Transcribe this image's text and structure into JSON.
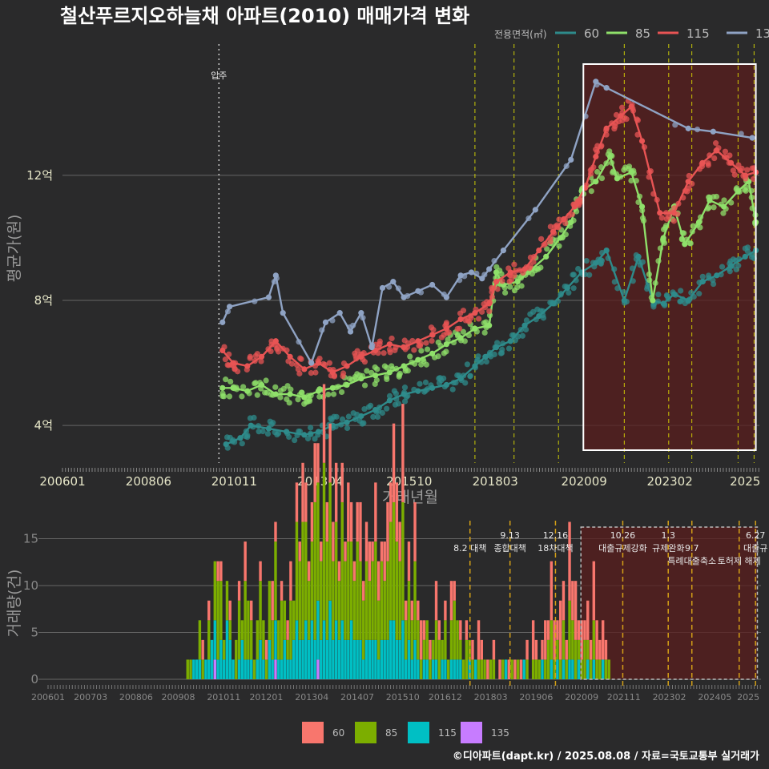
{
  "title": "철산푸르지오하늘채 아파트(2010) 매매가격 변화",
  "source": "©디아파트(dapt.kr) / 2025.08.08 / 자료=국토교통부 실거래가",
  "colors": {
    "bg": "#2a2a2b",
    "grid": "#666666",
    "vline": "#e6e600",
    "vline2": "#d4a017",
    "box": "#ffffff",
    "region": "#5a1e1e"
  },
  "chart_data": [
    {
      "type": "line",
      "title": "철산푸르지오하늘채 아파트(2010) 매매가격 변화",
      "xlabel": "거래년월",
      "ylabel": "평균가(원)",
      "x_ticks": [
        "200601",
        "200806",
        "201011",
        "201304",
        "201510",
        "201803",
        "202009",
        "202302",
        "2025"
      ],
      "y_ticks": [
        {
          "value": 4,
          "label": "4억"
        },
        {
          "value": 8,
          "label": "8억"
        },
        {
          "value": 12,
          "label": "12억"
        }
      ],
      "ylim": [
        2.8,
        16.2
      ],
      "xlim": [
        2006.0,
        2025.6
      ],
      "legend_title": "전용면적(㎡)",
      "legend_position": "top-right",
      "vline_label": "입주",
      "series": [
        {
          "name": "60",
          "color": "#2e8b8b",
          "x": [
            2010.6,
            2011.0,
            2011.3,
            2011.8,
            2012.3,
            2012.8,
            2013.2,
            2013.6,
            2014.0,
            2014.4,
            2014.8,
            2015.2,
            2015.6,
            2016.0,
            2016.4,
            2016.8,
            2017.2,
            2017.6,
            2017.9,
            2018.2,
            2018.6,
            2019.0,
            2019.4,
            2019.8,
            2020.2,
            2020.6,
            2021.0,
            2021.3,
            2021.8,
            2022.2,
            2022.6,
            2022.9,
            2023.2,
            2023.6,
            2024.0,
            2024.4,
            2024.8,
            2025.2,
            2025.5
          ],
          "y": [
            3.4,
            3.6,
            4.0,
            3.9,
            3.8,
            3.7,
            3.8,
            4.0,
            4.1,
            4.3,
            4.5,
            4.8,
            5.0,
            5.1,
            5.2,
            5.3,
            5.5,
            5.9,
            6.2,
            6.5,
            6.7,
            7.2,
            7.5,
            7.9,
            8.4,
            8.9,
            9.2,
            9.6,
            8.0,
            9.4,
            8.0,
            7.9,
            8.2,
            8.0,
            8.6,
            8.8,
            9.1,
            9.4,
            9.6
          ]
        },
        {
          "name": "85",
          "color": "#8fe06a",
          "x": [
            2010.5,
            2010.8,
            2011.2,
            2011.6,
            2012.0,
            2012.4,
            2012.8,
            2013.2,
            2013.6,
            2014.0,
            2014.4,
            2014.8,
            2015.2,
            2015.6,
            2016.0,
            2016.4,
            2016.8,
            2017.2,
            2017.6,
            2018.0,
            2018.2,
            2018.4,
            2018.8,
            2019.2,
            2019.6,
            2020.0,
            2020.3,
            2020.6,
            2021.0,
            2021.4,
            2021.6,
            2022.0,
            2022.3,
            2022.6,
            2022.9,
            2023.2,
            2023.5,
            2023.9,
            2024.2,
            2024.6,
            2025.0,
            2025.3,
            2025.5
          ],
          "y": [
            5.2,
            5.2,
            5.1,
            5.3,
            5.0,
            5.0,
            4.9,
            5.1,
            5.2,
            5.3,
            5.5,
            5.6,
            5.7,
            5.9,
            6.1,
            6.3,
            6.6,
            6.8,
            7.1,
            7.2,
            8.9,
            8.5,
            8.6,
            9.0,
            9.4,
            10.0,
            10.5,
            11.5,
            11.8,
            12.6,
            11.9,
            12.1,
            11.0,
            8.0,
            10.0,
            11.0,
            9.8,
            10.5,
            11.2,
            11.0,
            11.5,
            11.8,
            10.5
          ]
        },
        {
          "name": "115",
          "color": "#e85454",
          "x": [
            2010.5,
            2010.8,
            2011.2,
            2011.6,
            2012.0,
            2012.4,
            2012.8,
            2013.2,
            2013.6,
            2014.0,
            2014.4,
            2014.8,
            2015.2,
            2015.6,
            2016.0,
            2016.4,
            2016.8,
            2017.2,
            2017.6,
            2018.0,
            2018.2,
            2018.6,
            2019.0,
            2019.4,
            2019.8,
            2020.1,
            2020.4,
            2020.7,
            2021.0,
            2021.3,
            2021.7,
            2022.0,
            2022.3,
            2022.8,
            2023.2,
            2023.6,
            2024.0,
            2024.4,
            2024.8,
            2025.2,
            2025.5
          ],
          "y": [
            6.4,
            6.0,
            5.9,
            6.2,
            6.7,
            6.2,
            5.8,
            6.0,
            5.7,
            5.9,
            6.2,
            6.4,
            6.6,
            6.5,
            6.7,
            6.9,
            7.1,
            7.4,
            7.6,
            7.9,
            8.6,
            8.9,
            9.0,
            9.6,
            10.2,
            10.6,
            11.0,
            11.6,
            12.6,
            13.5,
            13.9,
            14.2,
            13.1,
            10.8,
            10.8,
            11.8,
            12.4,
            12.8,
            12.4,
            12.0,
            12.1
          ]
        },
        {
          "name": "135",
          "color": "#8fa3c4",
          "x": [
            2010.5,
            2010.7,
            2011.8,
            2012.0,
            2012.2,
            2013.0,
            2013.4,
            2013.8,
            2014.1,
            2014.4,
            2014.7,
            2015.0,
            2015.3,
            2015.6,
            2016.0,
            2016.4,
            2016.8,
            2017.2,
            2017.5,
            2017.8,
            2018.0,
            2018.4,
            2019.3,
            2020.3,
            2021.0,
            2021.3,
            2023.6,
            2024.3,
            2025.4
          ],
          "y": [
            7.3,
            7.8,
            8.1,
            8.8,
            7.6,
            6.0,
            7.3,
            7.6,
            7.0,
            7.6,
            6.5,
            8.4,
            8.6,
            8.1,
            8.3,
            8.5,
            8.1,
            8.8,
            8.9,
            8.7,
            9.0,
            9.6,
            10.9,
            12.5,
            15.0,
            14.8,
            13.5,
            13.4,
            13.2
          ]
        }
      ],
      "policy_vlines": [
        2017.6,
        2018.7,
        2019.95,
        2021.8,
        2023.05,
        2023.7,
        2025.0,
        2025.45
      ],
      "entry_vline": 2010.4,
      "highlight_box": [
        2020.65,
        2025.5
      ]
    },
    {
      "type": "bar",
      "ylabel": "거래량(건)",
      "stacked": true,
      "y_ticks": [
        0,
        5,
        10,
        15
      ],
      "ylim": [
        0,
        16.5
      ],
      "x_ticks": [
        "200601",
        "200703",
        "200806",
        "200908",
        "201011",
        "201201",
        "201304",
        "201407",
        "201510",
        "201612",
        "201803",
        "201906",
        "202009",
        "202111",
        "202302",
        "202405",
        "2025"
      ],
      "legend_position": "bottom",
      "series": [
        {
          "name": "60",
          "color": "#f8766d"
        },
        {
          "name": "85",
          "color": "#7cae00"
        },
        {
          "name": "115",
          "color": "#00bfc4"
        },
        {
          "name": "135",
          "color": "#c77cff"
        }
      ],
      "months_start": 2009.8,
      "volumes": [
        [
          0,
          1,
          0,
          0
        ],
        [
          0,
          1,
          0,
          0
        ],
        [
          0,
          0,
          1,
          0
        ],
        [
          0,
          0,
          1,
          0
        ],
        [
          0,
          2,
          1,
          0
        ],
        [
          1,
          1,
          0,
          0
        ],
        [
          0,
          0,
          1,
          0
        ],
        [
          1,
          2,
          1,
          0
        ],
        [
          0,
          0,
          2,
          0
        ],
        [
          0,
          3,
          2,
          1
        ],
        [
          1,
          4,
          1,
          0
        ],
        [
          1,
          3,
          2,
          0
        ],
        [
          0,
          1,
          1,
          0
        ],
        [
          0,
          2,
          3,
          0
        ],
        [
          1,
          1,
          2,
          0
        ],
        [
          0,
          0,
          1,
          0
        ],
        [
          0,
          2,
          0,
          0
        ],
        [
          1,
          3,
          1,
          0
        ],
        [
          0,
          1,
          2,
          0
        ],
        [
          2,
          4,
          1,
          0
        ],
        [
          0,
          3,
          1,
          0
        ],
        [
          1,
          2,
          1,
          0
        ],
        [
          0,
          1,
          0,
          0
        ],
        [
          0,
          2,
          1,
          0
        ],
        [
          1,
          3,
          2,
          0
        ],
        [
          0,
          2,
          1,
          0
        ],
        [
          1,
          1,
          0,
          0
        ],
        [
          0,
          3,
          2,
          0
        ],
        [
          2,
          2,
          1,
          0
        ],
        [
          1,
          4,
          2,
          1
        ],
        [
          0,
          2,
          1,
          0
        ],
        [
          1,
          3,
          1,
          0
        ],
        [
          0,
          2,
          2,
          0
        ],
        [
          1,
          1,
          1,
          0
        ],
        [
          2,
          3,
          1,
          0
        ],
        [
          0,
          2,
          2,
          0
        ],
        [
          2,
          5,
          3,
          0
        ],
        [
          1,
          4,
          2,
          0
        ],
        [
          3,
          6,
          2,
          0
        ],
        [
          2,
          5,
          3,
          0
        ],
        [
          1,
          3,
          2,
          0
        ],
        [
          2,
          4,
          3,
          0
        ],
        [
          3,
          7,
          2,
          0
        ],
        [
          2,
          6,
          3,
          1
        ],
        [
          1,
          4,
          2,
          0
        ],
        [
          4,
          8,
          3,
          0
        ],
        [
          2,
          5,
          2,
          0
        ],
        [
          3,
          6,
          4,
          0
        ],
        [
          2,
          4,
          2,
          0
        ],
        [
          3,
          5,
          3,
          0
        ],
        [
          1,
          3,
          2,
          0
        ],
        [
          2,
          6,
          3,
          0
        ],
        [
          1,
          4,
          2,
          0
        ],
        [
          3,
          5,
          2,
          0
        ],
        [
          2,
          4,
          3,
          0
        ],
        [
          1,
          3,
          2,
          0
        ],
        [
          2,
          5,
          2,
          0
        ],
        [
          3,
          4,
          2,
          0
        ],
        [
          1,
          3,
          1,
          0
        ],
        [
          2,
          4,
          2,
          0
        ],
        [
          2,
          3,
          2,
          0
        ],
        [
          1,
          4,
          2,
          0
        ],
        [
          3,
          5,
          2,
          0
        ],
        [
          2,
          3,
          1,
          0
        ],
        [
          1,
          4,
          2,
          0
        ],
        [
          2,
          3,
          2,
          0
        ],
        [
          3,
          4,
          2,
          0
        ],
        [
          2,
          5,
          3,
          0
        ],
        [
          4,
          6,
          3,
          0
        ],
        [
          3,
          5,
          2,
          0
        ],
        [
          2,
          4,
          2,
          0
        ],
        [
          5,
          6,
          3,
          0
        ],
        [
          1,
          2,
          1,
          0
        ],
        [
          2,
          3,
          2,
          0
        ],
        [
          1,
          2,
          1,
          0
        ],
        [
          3,
          4,
          2,
          0
        ],
        [
          1,
          2,
          1,
          0
        ],
        [
          2,
          1,
          0,
          0
        ],
        [
          1,
          1,
          1,
          0
        ],
        [
          0,
          2,
          1,
          0
        ],
        [
          1,
          1,
          0,
          0
        ],
        [
          0,
          1,
          1,
          0
        ],
        [
          2,
          2,
          1,
          0
        ],
        [
          1,
          2,
          0,
          0
        ],
        [
          0,
          1,
          1,
          0
        ],
        [
          1,
          2,
          1,
          0
        ],
        [
          0,
          1,
          0,
          0
        ],
        [
          2,
          2,
          1,
          0
        ],
        [
          1,
          3,
          1,
          0
        ],
        [
          0,
          2,
          1,
          0
        ],
        [
          1,
          1,
          1,
          0
        ],
        [
          0,
          1,
          0,
          0
        ],
        [
          1,
          2,
          0,
          0
        ],
        [
          0,
          1,
          1,
          0
        ],
        [
          1,
          1,
          0,
          0
        ],
        [
          0,
          0,
          1,
          0
        ],
        [
          2,
          1,
          0,
          0
        ],
        [
          1,
          1,
          0,
          0
        ],
        [
          0,
          1,
          0,
          0
        ],
        [
          1,
          0,
          0,
          0
        ],
        [
          0,
          1,
          0,
          0
        ],
        [
          1,
          1,
          0,
          0
        ],
        [
          0,
          0,
          0,
          0
        ],
        [
          1,
          0,
          0,
          0
        ],
        [
          0,
          1,
          0,
          0
        ],
        [
          0,
          0,
          1,
          0
        ],
        [
          1,
          0,
          0,
          0
        ],
        [
          0,
          1,
          0,
          0
        ],
        [
          1,
          0,
          0,
          0
        ],
        [
          0,
          1,
          0,
          0
        ],
        [
          1,
          0,
          0,
          0
        ],
        [
          0,
          0,
          1,
          0
        ],
        [
          1,
          1,
          0,
          0
        ],
        [
          0,
          0,
          0,
          0
        ],
        [
          2,
          1,
          0,
          0
        ],
        [
          1,
          1,
          0,
          0
        ],
        [
          0,
          1,
          0,
          0
        ],
        [
          1,
          0,
          1,
          0
        ],
        [
          2,
          1,
          0,
          0
        ],
        [
          1,
          2,
          0,
          0
        ],
        [
          3,
          2,
          1,
          0
        ],
        [
          2,
          1,
          0,
          0
        ],
        [
          1,
          1,
          1,
          0
        ],
        [
          3,
          1,
          0,
          0
        ],
        [
          2,
          2,
          1,
          0
        ],
        [
          1,
          1,
          0,
          0
        ],
        [
          4,
          3,
          1,
          0
        ],
        [
          2,
          2,
          1,
          0
        ],
        [
          3,
          2,
          0,
          0
        ],
        [
          1,
          1,
          1,
          0
        ],
        [
          2,
          1,
          0,
          0
        ],
        [
          1,
          2,
          0,
          0
        ],
        [
          2,
          1,
          1,
          0
        ],
        [
          1,
          1,
          0,
          0
        ],
        [
          3,
          2,
          1,
          0
        ],
        [
          2,
          1,
          0,
          0
        ],
        [
          1,
          1,
          0,
          0
        ],
        [
          2,
          0,
          1,
          0
        ],
        [
          1,
          1,
          0,
          0
        ],
        [
          0,
          1,
          0,
          0
        ]
      ],
      "annotations": [
        {
          "x": 2017.6,
          "label": "8.2 대책",
          "row": 1
        },
        {
          "x": 2018.7,
          "label": "9.13",
          "row": 0
        },
        {
          "x": 2018.7,
          "label": "종합대책",
          "row": 1
        },
        {
          "x": 2019.95,
          "label": "12.16",
          "row": 0
        },
        {
          "x": 2019.95,
          "label": "18차대책",
          "row": 1
        },
        {
          "x": 2021.8,
          "label": "10.26",
          "row": 0
        },
        {
          "x": 2021.8,
          "label": "대출규제강화",
          "row": 1
        },
        {
          "x": 2023.05,
          "label": "1.3",
          "row": 0
        },
        {
          "x": 2023.05,
          "label": "규제완화",
          "row": 1
        },
        {
          "x": 2023.7,
          "label": "9.7",
          "row": 1
        },
        {
          "x": 2023.7,
          "label": "특례대출축소",
          "row": 2
        },
        {
          "x": 2025.0,
          "label": "토허제 해제",
          "row": 2
        },
        {
          "x": 2025.45,
          "label": "6.27",
          "row": 0
        },
        {
          "x": 2025.45,
          "label": "대출규",
          "row": 1
        }
      ]
    }
  ]
}
